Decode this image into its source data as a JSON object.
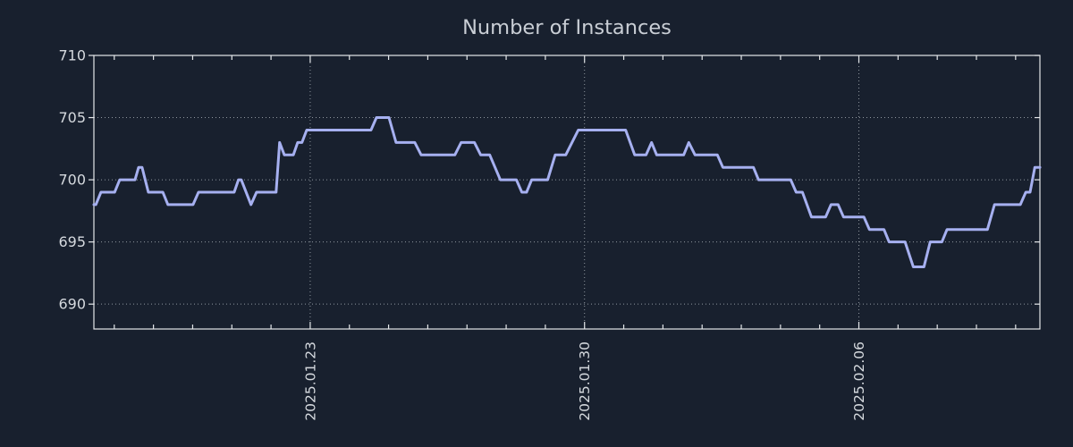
{
  "chart_data": {
    "type": "line",
    "title": "Number of Instances",
    "xlabel": "",
    "ylabel": "",
    "legend": "none",
    "grid": "dotted, horizontal at y-ticks and vertical at labeled date ticks",
    "x_axis": {
      "unit": "days offset from 2025.01.17 (one minor tick per day)",
      "xlim": [
        0.48,
        24.62
      ],
      "minor_tick_days": [
        1,
        2,
        3,
        4,
        5,
        6,
        7,
        8,
        9,
        10,
        11,
        12,
        13,
        14,
        15,
        16,
        17,
        18,
        19,
        20,
        21,
        22,
        23,
        24
      ],
      "major_ticks": [
        {
          "day": 6,
          "label": "2025.01.23"
        },
        {
          "day": 13,
          "label": "2025.01.30"
        },
        {
          "day": 20,
          "label": "2025.02.06"
        }
      ]
    },
    "y_axis": {
      "ylim": [
        688,
        710
      ],
      "ticks": [
        690,
        695,
        700,
        705,
        710
      ]
    },
    "series": [
      {
        "name": "instances",
        "points": [
          [
            0.48,
            698
          ],
          [
            0.53,
            698
          ],
          [
            0.66,
            699
          ],
          [
            1.01,
            699
          ],
          [
            1.14,
            700
          ],
          [
            1.53,
            700
          ],
          [
            1.62,
            701
          ],
          [
            1.71,
            701
          ],
          [
            1.87,
            699
          ],
          [
            2.24,
            699
          ],
          [
            2.37,
            698
          ],
          [
            3.01,
            698
          ],
          [
            3.15,
            699
          ],
          [
            4.06,
            699
          ],
          [
            4.17,
            700
          ],
          [
            4.24,
            700
          ],
          [
            4.49,
            698
          ],
          [
            4.63,
            699
          ],
          [
            5.13,
            699
          ],
          [
            5.22,
            703
          ],
          [
            5.34,
            702
          ],
          [
            5.57,
            702
          ],
          [
            5.68,
            703
          ],
          [
            5.79,
            703
          ],
          [
            5.91,
            704
          ],
          [
            7.55,
            704
          ],
          [
            7.69,
            705
          ],
          [
            8.01,
            705
          ],
          [
            8.19,
            703
          ],
          [
            8.67,
            703
          ],
          [
            8.83,
            702
          ],
          [
            9.69,
            702
          ],
          [
            9.85,
            703
          ],
          [
            10.19,
            703
          ],
          [
            10.35,
            702
          ],
          [
            10.58,
            702
          ],
          [
            10.85,
            700
          ],
          [
            11.26,
            700
          ],
          [
            11.4,
            699
          ],
          [
            11.52,
            699
          ],
          [
            11.65,
            700
          ],
          [
            12.06,
            700
          ],
          [
            12.25,
            702
          ],
          [
            12.52,
            702
          ],
          [
            12.84,
            704
          ],
          [
            14.05,
            704
          ],
          [
            14.28,
            702
          ],
          [
            14.57,
            702
          ],
          [
            14.71,
            703
          ],
          [
            14.84,
            702
          ],
          [
            15.53,
            702
          ],
          [
            15.66,
            703
          ],
          [
            15.82,
            702
          ],
          [
            16.39,
            702
          ],
          [
            16.53,
            701
          ],
          [
            17.31,
            701
          ],
          [
            17.44,
            700
          ],
          [
            18.26,
            700
          ],
          [
            18.4,
            699
          ],
          [
            18.56,
            699
          ],
          [
            18.79,
            697
          ],
          [
            19.15,
            697
          ],
          [
            19.29,
            698
          ],
          [
            19.47,
            698
          ],
          [
            19.61,
            697
          ],
          [
            20.13,
            697
          ],
          [
            20.27,
            696
          ],
          [
            20.64,
            696
          ],
          [
            20.77,
            695
          ],
          [
            21.18,
            695
          ],
          [
            21.39,
            693
          ],
          [
            21.66,
            693
          ],
          [
            21.82,
            695
          ],
          [
            22.12,
            695
          ],
          [
            22.25,
            696
          ],
          [
            23.28,
            696
          ],
          [
            23.46,
            698
          ],
          [
            24.12,
            698
          ],
          [
            24.26,
            699
          ],
          [
            24.37,
            699
          ],
          [
            24.49,
            701
          ],
          [
            24.62,
            701
          ]
        ]
      }
    ],
    "colors": {
      "background": "#18202e",
      "line": "#a6b0f0",
      "grid": "#8f969e",
      "axis_border": "#e4e7ea",
      "tick_text": "#d5d9de",
      "title_text": "#c9ced5"
    }
  }
}
